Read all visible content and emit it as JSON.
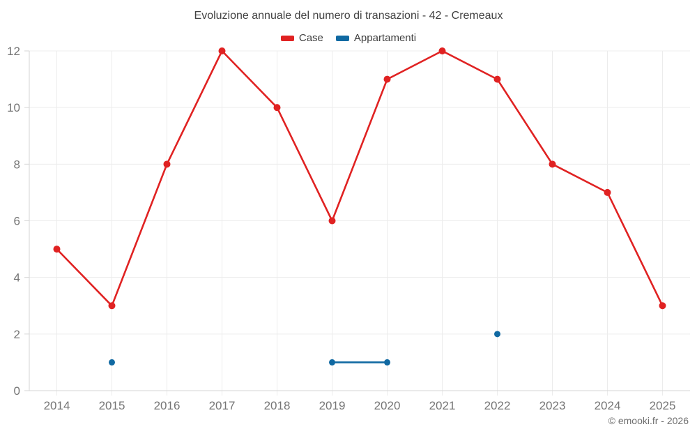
{
  "title": "Evoluzione annuale del numero di transazioni - 42 - Cremeaux",
  "footer": "© emooki.fr - 2026",
  "colors": {
    "grid": "#ececec",
    "axis": "#d6d6d6",
    "tick_text": "#757575",
    "title_text": "#424242",
    "footer_text": "#6e6e6e"
  },
  "chart_data": {
    "type": "line",
    "title": "Evoluzione annuale del numero di transazioni - 42 - Cremeaux",
    "xlabel": "",
    "ylabel": "",
    "categories": [
      "2014",
      "2015",
      "2016",
      "2017",
      "2018",
      "2019",
      "2020",
      "2021",
      "2022",
      "2023",
      "2024",
      "2025"
    ],
    "series": [
      {
        "name": "Case",
        "color": "#e02222",
        "values": [
          5,
          3,
          8,
          12,
          10,
          6,
          11,
          12,
          11,
          8,
          7,
          3
        ]
      },
      {
        "name": "Appartamenti",
        "color": "#1069a2",
        "values": [
          null,
          1,
          null,
          null,
          null,
          1,
          1,
          null,
          2,
          null,
          null,
          null
        ]
      }
    ],
    "ylim": [
      0,
      12
    ],
    "yticks": [
      0,
      2,
      4,
      6,
      8,
      10,
      12
    ],
    "grid": true,
    "legend_position": "top"
  }
}
